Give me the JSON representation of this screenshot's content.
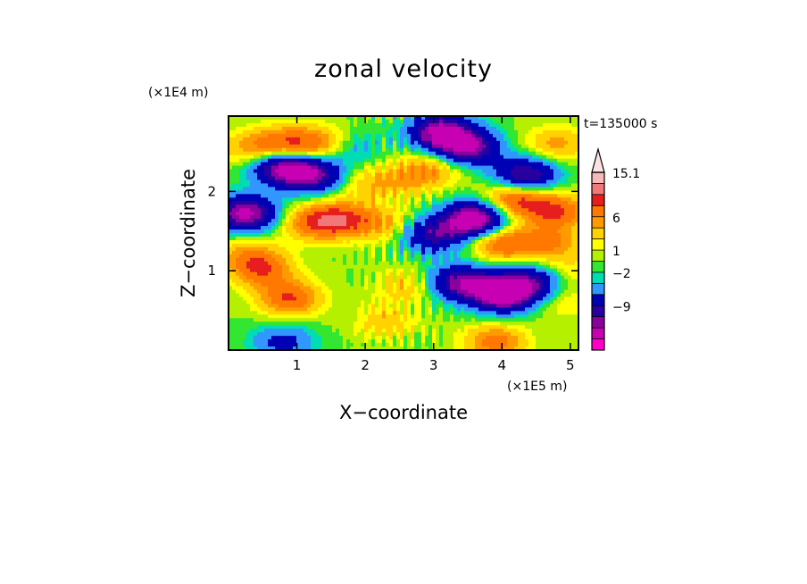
{
  "chart_data": {
    "type": "heatmap",
    "title": "zonal velocity",
    "xlabel": "X−coordinate",
    "ylabel": "Z−coordinate",
    "x_unit": "(×1E5 m)",
    "y_unit": "(×1E4 m)",
    "time_label": "t=135000 s",
    "xlim": [
      0,
      5.12
    ],
    "ylim": [
      0,
      2.95
    ],
    "x_ticks": [
      "1",
      "2",
      "3",
      "4",
      "5"
    ],
    "y_ticks": [
      "1",
      "2"
    ],
    "colorbar_labels": [
      "15.1",
      "6",
      "1",
      "−2",
      "−9"
    ],
    "colorbar_colors": [
      "#f7b8b8",
      "#f07878",
      "#e61e1e",
      "#ff7800",
      "#ff9a00",
      "#ffd200",
      "#ffff00",
      "#b4f000",
      "#32e632",
      "#00dcb4",
      "#3296ff",
      "#0000b4",
      "#2800a0",
      "#8c00a0",
      "#c800b4",
      "#ff00c8"
    ],
    "blobs": [
      {
        "x": 0.5,
        "z": 1.0,
        "v": 6
      },
      {
        "x": 0.9,
        "z": 0.65,
        "v": 7
      },
      {
        "x": 0.3,
        "z": 1.2,
        "v": 4
      },
      {
        "x": 1.6,
        "z": 1.65,
        "v": 7
      },
      {
        "x": 1.2,
        "z": 1.6,
        "v": 5
      },
      {
        "x": 2.2,
        "z": 1.6,
        "v": 4
      },
      {
        "x": 0.25,
        "z": 1.72,
        "v": -12
      },
      {
        "x": 0.8,
        "z": 2.3,
        "v": -11
      },
      {
        "x": 1.25,
        "z": 2.2,
        "v": -9
      },
      {
        "x": 0.85,
        "z": 2.6,
        "v": 6
      },
      {
        "x": 1.35,
        "z": 2.6,
        "v": 5
      },
      {
        "x": 0.35,
        "z": 2.55,
        "v": 4
      },
      {
        "x": 1.8,
        "z": 2.55,
        "v": -3
      },
      {
        "x": 2.0,
        "z": 2.1,
        "v": 3
      },
      {
        "x": 2.6,
        "z": 2.15,
        "v": 3
      },
      {
        "x": 3.1,
        "z": 2.75,
        "v": -12
      },
      {
        "x": 3.5,
        "z": 2.55,
        "v": -11
      },
      {
        "x": 3.0,
        "z": 2.3,
        "v": 4
      },
      {
        "x": 3.6,
        "z": 1.65,
        "v": -14
      },
      {
        "x": 3.0,
        "z": 1.45,
        "v": -8
      },
      {
        "x": 4.2,
        "z": 1.9,
        "v": 8
      },
      {
        "x": 4.35,
        "z": 2.2,
        "v": -10
      },
      {
        "x": 4.8,
        "z": 1.75,
        "v": 7
      },
      {
        "x": 4.8,
        "z": 2.6,
        "v": 4
      },
      {
        "x": 4.0,
        "z": 1.35,
        "v": 7
      },
      {
        "x": 4.7,
        "z": 1.35,
        "v": 5
      },
      {
        "x": 4.0,
        "z": 0.7,
        "v": -13
      },
      {
        "x": 3.4,
        "z": 0.85,
        "v": -10
      },
      {
        "x": 4.4,
        "z": 0.85,
        "v": -8
      },
      {
        "x": 2.6,
        "z": 0.8,
        "v": 3
      },
      {
        "x": 2.3,
        "z": 0.35,
        "v": 3
      },
      {
        "x": 3.9,
        "z": 0.1,
        "v": 6
      },
      {
        "x": 0.8,
        "z": 0.1,
        "v": -5
      },
      {
        "x": 4.9,
        "z": 0.6,
        "v": 2
      },
      {
        "x": 5.0,
        "z": 1.0,
        "v": 2
      }
    ]
  }
}
